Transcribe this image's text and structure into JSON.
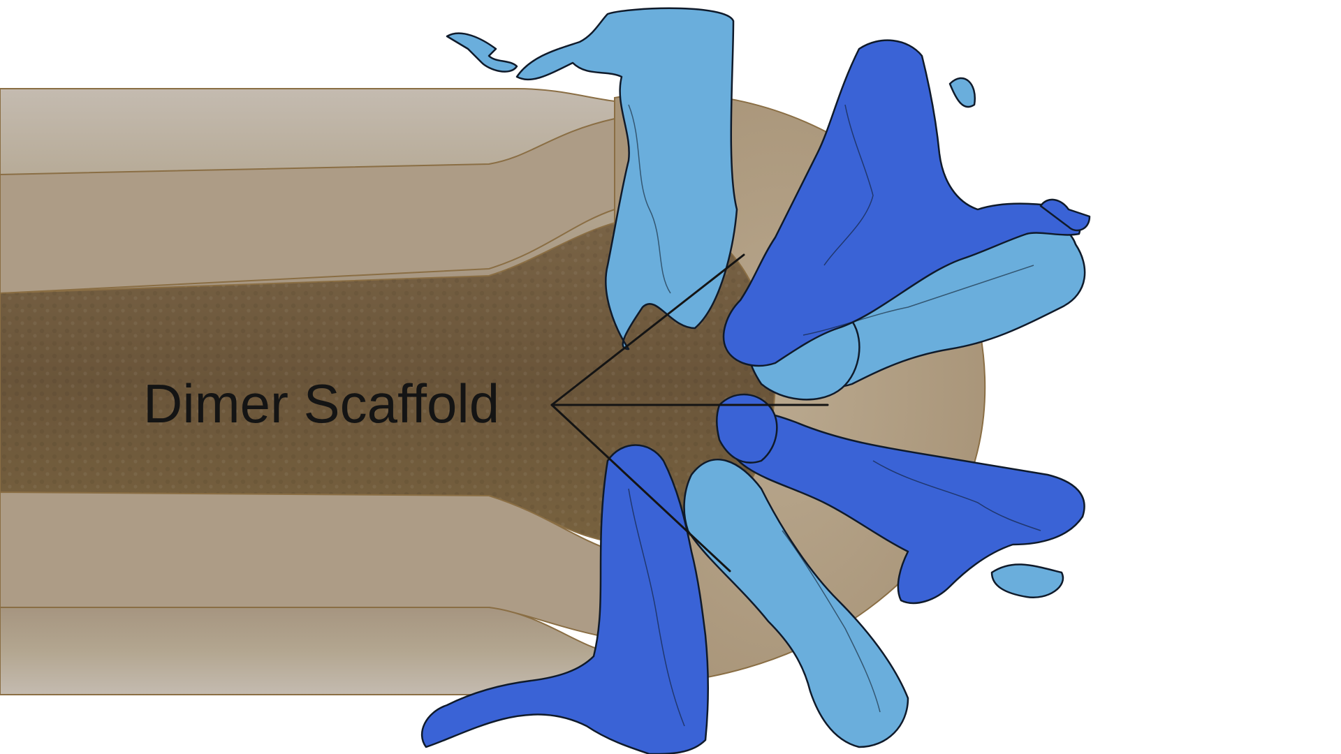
{
  "diagram": {
    "label": "Dimer Scaffold"
  },
  "colors": {
    "background": "#ffffff",
    "membrane_light": "#b7aa98",
    "membrane_mid": "#ad9c83",
    "membrane_dark": "#6e5b40",
    "membrane_edge": "#8a6e44",
    "protein_dark_blue": "#3a63d6",
    "protein_light_blue": "#6aaedc",
    "leader_line": "#141414"
  },
  "icons": {
    "protein_dark": "protein-dimer-icon",
    "protein_light": "protein-monomer-icon"
  }
}
